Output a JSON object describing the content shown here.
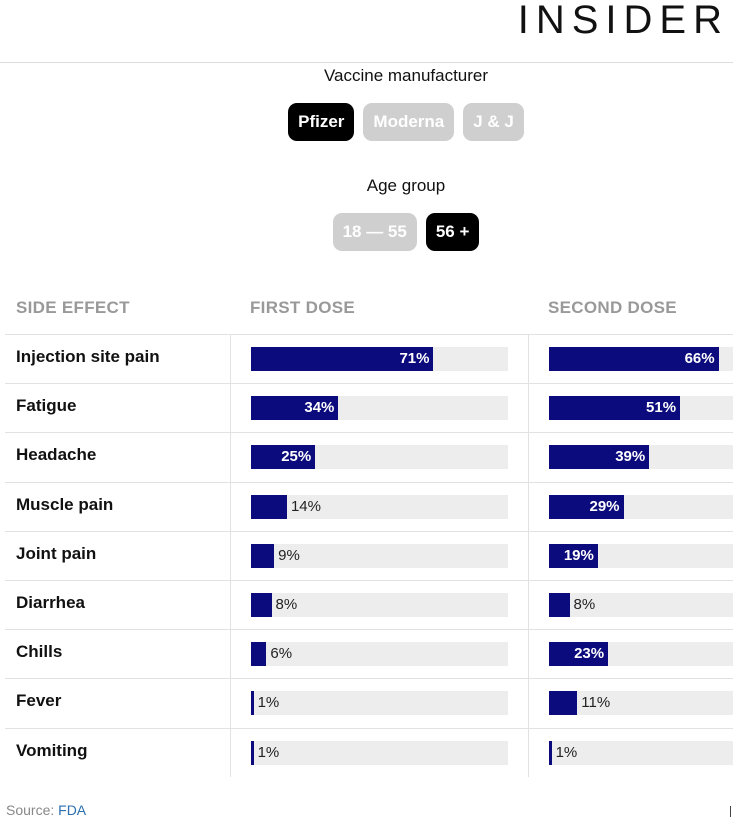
{
  "brand": "INSIDER",
  "filters": {
    "manufacturer_label": "Vaccine manufacturer",
    "manufacturers": [
      {
        "label": "Pfizer",
        "selected": true
      },
      {
        "label": "Moderna",
        "selected": false
      },
      {
        "label": "J & J",
        "selected": false
      }
    ],
    "age_label": "Age group",
    "ages": [
      {
        "label": "18 — 55",
        "selected": false
      },
      {
        "label": "56 +",
        "selected": true
      }
    ]
  },
  "table": {
    "headers": [
      "SIDE EFFECT",
      "FIRST DOSE",
      "SECOND DOSE"
    ]
  },
  "colors": {
    "bar": "#0b0b7d",
    "track": "#ededed"
  },
  "chart_data": {
    "type": "bar",
    "categories": [
      "Injection site pain",
      "Fatigue",
      "Headache",
      "Muscle pain",
      "Joint pain",
      "Diarrhea",
      "Chills",
      "Fever",
      "Vomiting"
    ],
    "series": [
      {
        "name": "FIRST DOSE",
        "values": [
          71,
          34,
          25,
          14,
          9,
          8,
          6,
          1,
          1
        ]
      },
      {
        "name": "SECOND DOSE",
        "values": [
          66,
          51,
          39,
          29,
          19,
          8,
          23,
          11,
          1
        ]
      }
    ],
    "ylim": [
      0,
      100
    ],
    "value_labels": [
      [
        "71%",
        "34%",
        "25%",
        "14%",
        "9%",
        "8%",
        "6%",
        "1%",
        "1%"
      ],
      [
        "66%",
        "51%",
        "39%",
        "29%",
        "19%",
        "8%",
        "23%",
        "11%",
        "1%"
      ]
    ]
  },
  "source": {
    "label": "Source:",
    "name": "FDA"
  }
}
